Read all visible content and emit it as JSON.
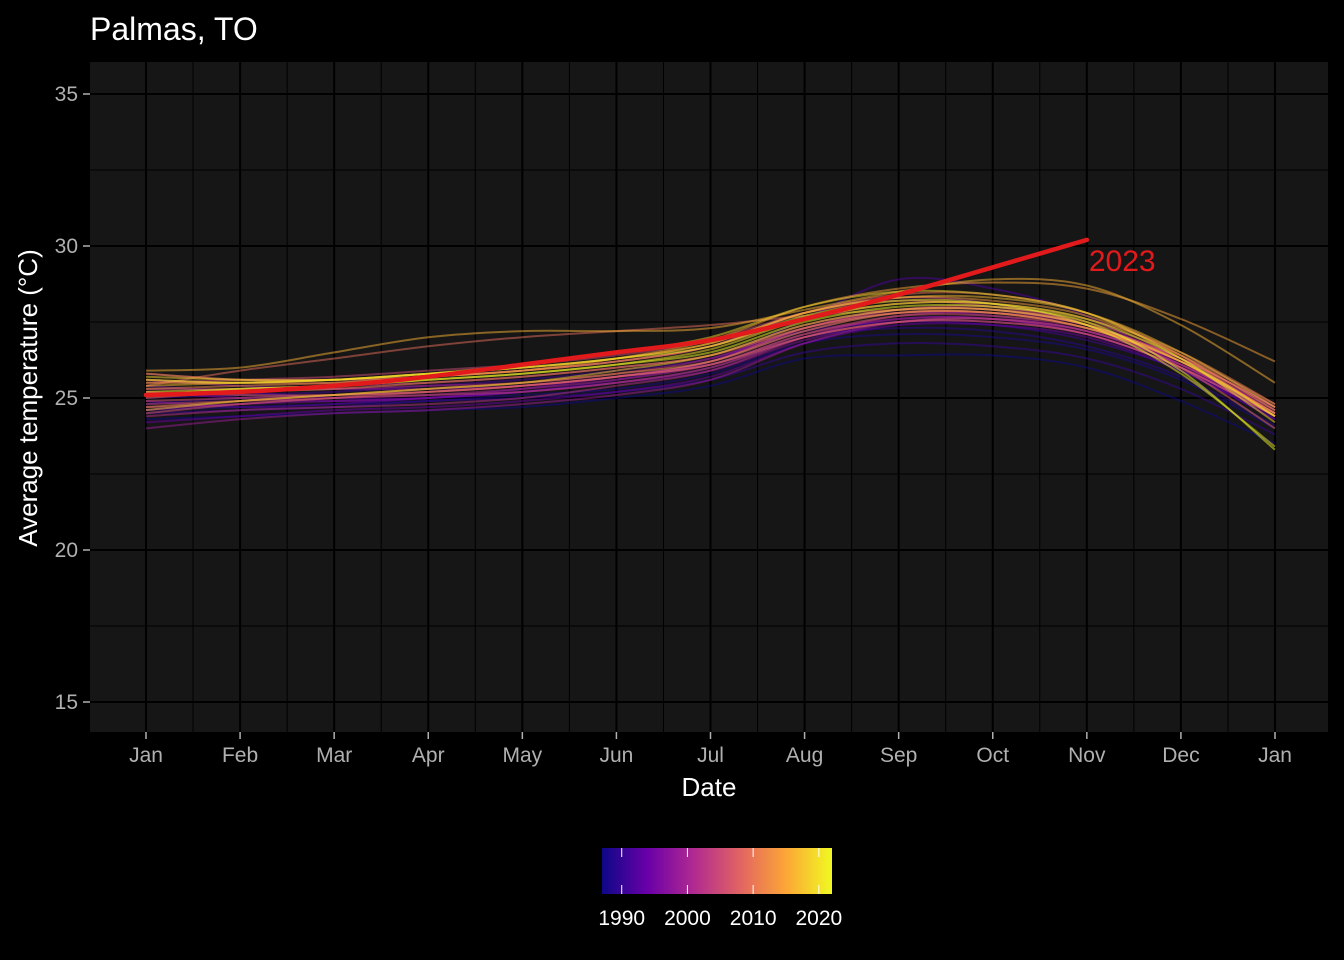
{
  "chart_data": {
    "type": "line",
    "title": "Palmas, TO",
    "xlabel": "Date",
    "ylabel": "Average temperature (°C)",
    "ylim": [
      14,
      36
    ],
    "y_ticks": [
      15,
      20,
      25,
      30,
      35
    ],
    "x_ticks": [
      "Jan",
      "Feb",
      "Mar",
      "Apr",
      "May",
      "Jun",
      "Jul",
      "Aug",
      "Sep",
      "Oct",
      "Nov",
      "Dec",
      "Jan"
    ],
    "grid": true,
    "background": "#161616",
    "legend": {
      "type": "colorbar",
      "placement": "bottom",
      "range": [
        1987,
        2022
      ],
      "ticks": [
        1990,
        2000,
        2010,
        2020
      ],
      "palette": [
        "#0d0887",
        "#6a00a8",
        "#b12a90",
        "#e16462",
        "#fca636",
        "#f0f921"
      ]
    },
    "highlight": {
      "name": "2023",
      "color": "#e31a1c",
      "x": [
        "Jan",
        "Feb",
        "Mar",
        "Apr",
        "May",
        "Jun",
        "Jul",
        "Aug",
        "Sep",
        "Oct",
        "Nov"
      ],
      "y": [
        25.1,
        25.2,
        25.4,
        25.7,
        26.1,
        26.5,
        26.9,
        27.6,
        28.4,
        29.3,
        30.2
      ]
    },
    "series": [
      {
        "year": 1987,
        "y": [
          24.3,
          24.4,
          24.5,
          24.6,
          24.7,
          25.0,
          25.4,
          26.3,
          26.4,
          26.4,
          26.0,
          24.9,
          23.5
        ]
      },
      {
        "year": 1988,
        "y": [
          24.6,
          24.7,
          24.8,
          24.9,
          25.1,
          25.3,
          25.8,
          26.8,
          27.1,
          27.0,
          26.6,
          25.6,
          24.0
        ]
      },
      {
        "year": 1989,
        "y": [
          24.8,
          25.0,
          25.1,
          25.2,
          25.4,
          25.7,
          26.1,
          27.0,
          27.3,
          27.2,
          26.7,
          25.7,
          24.1
        ]
      },
      {
        "year": 1990,
        "y": [
          24.5,
          24.6,
          24.7,
          24.9,
          25.0,
          25.2,
          25.6,
          26.5,
          26.8,
          26.7,
          26.3,
          25.3,
          23.8
        ]
      },
      {
        "year": 1991,
        "y": [
          25.0,
          25.1,
          25.2,
          25.4,
          25.6,
          25.9,
          26.3,
          27.2,
          27.5,
          27.4,
          26.9,
          25.9,
          24.3
        ]
      },
      {
        "year": 1992,
        "y": [
          25.4,
          25.2,
          25.0,
          25.0,
          25.2,
          25.6,
          26.2,
          27.6,
          28.9,
          28.6,
          27.7,
          26.0,
          24.4
        ]
      },
      {
        "year": 1993,
        "y": [
          24.9,
          24.7,
          24.8,
          25.0,
          25.2,
          25.5,
          26.0,
          27.0,
          27.6,
          27.6,
          27.1,
          26.0,
          24.5
        ]
      },
      {
        "year": 1994,
        "y": [
          24.2,
          24.4,
          24.6,
          24.7,
          24.9,
          25.2,
          25.7,
          26.8,
          27.4,
          27.4,
          27.0,
          25.9,
          24.3
        ]
      },
      {
        "year": 1995,
        "y": [
          25.2,
          25.0,
          24.9,
          25.0,
          25.3,
          25.7,
          26.2,
          27.2,
          27.8,
          27.7,
          27.2,
          26.1,
          24.5
        ]
      },
      {
        "year": 1996,
        "y": [
          24.6,
          24.8,
          24.9,
          25.0,
          25.2,
          25.5,
          25.9,
          26.9,
          27.5,
          27.5,
          27.1,
          26.0,
          24.4
        ]
      },
      {
        "year": 1997,
        "y": [
          25.6,
          25.4,
          25.3,
          25.3,
          25.4,
          25.7,
          26.2,
          27.3,
          27.9,
          27.9,
          27.4,
          26.3,
          24.7
        ]
      },
      {
        "year": 1998,
        "y": [
          25.8,
          25.6,
          25.6,
          25.7,
          25.9,
          26.2,
          26.7,
          27.8,
          28.3,
          28.1,
          27.4,
          26.1,
          24.5
        ]
      },
      {
        "year": 1999,
        "y": [
          24.0,
          24.3,
          24.5,
          24.6,
          24.8,
          25.1,
          25.6,
          26.8,
          27.5,
          27.6,
          27.2,
          26.2,
          24.6
        ]
      },
      {
        "year": 2000,
        "y": [
          24.7,
          24.8,
          25.0,
          25.1,
          25.3,
          25.6,
          26.1,
          27.1,
          27.6,
          27.6,
          27.1,
          26.0,
          24.4
        ]
      },
      {
        "year": 2001,
        "y": [
          25.1,
          25.2,
          25.3,
          25.4,
          25.5,
          25.8,
          26.3,
          27.3,
          27.8,
          27.8,
          27.3,
          26.2,
          24.6
        ]
      },
      {
        "year": 2002,
        "y": [
          24.4,
          24.6,
          24.7,
          24.8,
          25.0,
          25.4,
          25.9,
          27.0,
          27.7,
          27.8,
          27.4,
          26.3,
          24.7
        ]
      },
      {
        "year": 2003,
        "y": [
          25.3,
          25.3,
          25.4,
          25.5,
          25.7,
          26.0,
          26.4,
          27.4,
          27.9,
          27.9,
          27.4,
          26.3,
          24.7
        ]
      },
      {
        "year": 2004,
        "y": [
          24.8,
          24.9,
          25.0,
          25.1,
          25.2,
          25.5,
          26.0,
          27.0,
          27.5,
          27.6,
          27.2,
          26.1,
          24.5
        ]
      },
      {
        "year": 2005,
        "y": [
          25.5,
          25.6,
          25.7,
          25.9,
          26.1,
          26.4,
          26.9,
          27.8,
          28.2,
          28.0,
          27.4,
          26.2,
          24.5
        ]
      },
      {
        "year": 2006,
        "y": [
          24.9,
          25.0,
          25.1,
          25.2,
          25.4,
          25.7,
          26.1,
          27.1,
          27.7,
          27.7,
          27.3,
          26.3,
          24.7
        ]
      },
      {
        "year": 2007,
        "y": [
          24.5,
          24.8,
          25.0,
          25.2,
          25.4,
          25.7,
          26.2,
          27.3,
          27.9,
          28.0,
          27.5,
          26.4,
          24.8
        ]
      },
      {
        "year": 2008,
        "y": [
          25.2,
          25.1,
          25.1,
          25.2,
          25.4,
          25.7,
          26.1,
          27.0,
          27.5,
          27.5,
          27.1,
          26.0,
          24.4
        ]
      },
      {
        "year": 2009,
        "y": [
          25.4,
          25.9,
          26.3,
          26.7,
          27.0,
          27.2,
          27.4,
          27.7,
          27.9,
          27.9,
          27.4,
          26.0,
          24.0
        ]
      },
      {
        "year": 2010,
        "y": [
          25.6,
          25.5,
          25.5,
          25.7,
          25.9,
          26.2,
          26.7,
          27.8,
          28.4,
          28.4,
          27.8,
          26.4,
          24.4
        ]
      },
      {
        "year": 2011,
        "y": [
          25.0,
          25.2,
          25.3,
          25.5,
          25.7,
          26.0,
          26.4,
          27.3,
          27.8,
          27.8,
          27.3,
          26.2,
          24.5
        ]
      },
      {
        "year": 2012,
        "y": [
          25.3,
          25.4,
          25.5,
          25.7,
          25.9,
          26.2,
          26.7,
          27.6,
          28.1,
          28.1,
          27.6,
          26.5,
          24.8
        ]
      },
      {
        "year": 2013,
        "y": [
          24.7,
          24.9,
          25.1,
          25.3,
          25.5,
          25.8,
          26.2,
          27.2,
          27.8,
          27.8,
          27.3,
          26.2,
          24.5
        ]
      },
      {
        "year": 2014,
        "y": [
          25.5,
          25.5,
          25.6,
          25.8,
          26.0,
          26.3,
          26.8,
          27.8,
          28.3,
          28.2,
          27.7,
          26.4,
          24.6
        ]
      },
      {
        "year": 2015,
        "y": [
          25.8,
          25.6,
          25.6,
          25.7,
          25.9,
          26.3,
          26.9,
          28.0,
          28.6,
          28.8,
          28.6,
          27.6,
          26.2
        ]
      },
      {
        "year": 2016,
        "y": [
          25.9,
          26.0,
          26.5,
          27.0,
          27.2,
          27.2,
          27.3,
          27.9,
          28.5,
          28.9,
          28.7,
          27.4,
          25.5
        ]
      },
      {
        "year": 2017,
        "y": [
          25.4,
          25.5,
          25.6,
          25.8,
          26.0,
          26.3,
          26.8,
          27.8,
          28.3,
          28.3,
          27.8,
          26.5,
          24.7
        ]
      },
      {
        "year": 2018,
        "y": [
          24.6,
          24.9,
          25.1,
          25.3,
          25.5,
          25.9,
          26.4,
          27.4,
          27.9,
          27.9,
          27.4,
          26.2,
          24.4
        ]
      },
      {
        "year": 2019,
        "y": [
          25.7,
          25.6,
          25.6,
          25.8,
          26.1,
          26.5,
          27.0,
          28.0,
          28.5,
          28.4,
          27.8,
          26.3,
          24.2
        ]
      },
      {
        "year": 2020,
        "y": [
          25.2,
          25.3,
          25.4,
          25.6,
          25.8,
          26.1,
          26.6,
          27.6,
          28.1,
          28.1,
          27.6,
          26.3,
          24.4
        ]
      },
      {
        "year": 2021,
        "y": [
          25.6,
          25.5,
          25.6,
          25.8,
          26.0,
          26.3,
          26.7,
          27.7,
          28.2,
          28.1,
          27.4,
          25.8,
          23.4
        ]
      },
      {
        "year": 2022,
        "y": [
          25.1,
          25.3,
          25.4,
          25.6,
          25.8,
          26.1,
          26.5,
          27.5,
          28.0,
          28.0,
          27.5,
          25.9,
          23.3
        ]
      }
    ]
  }
}
